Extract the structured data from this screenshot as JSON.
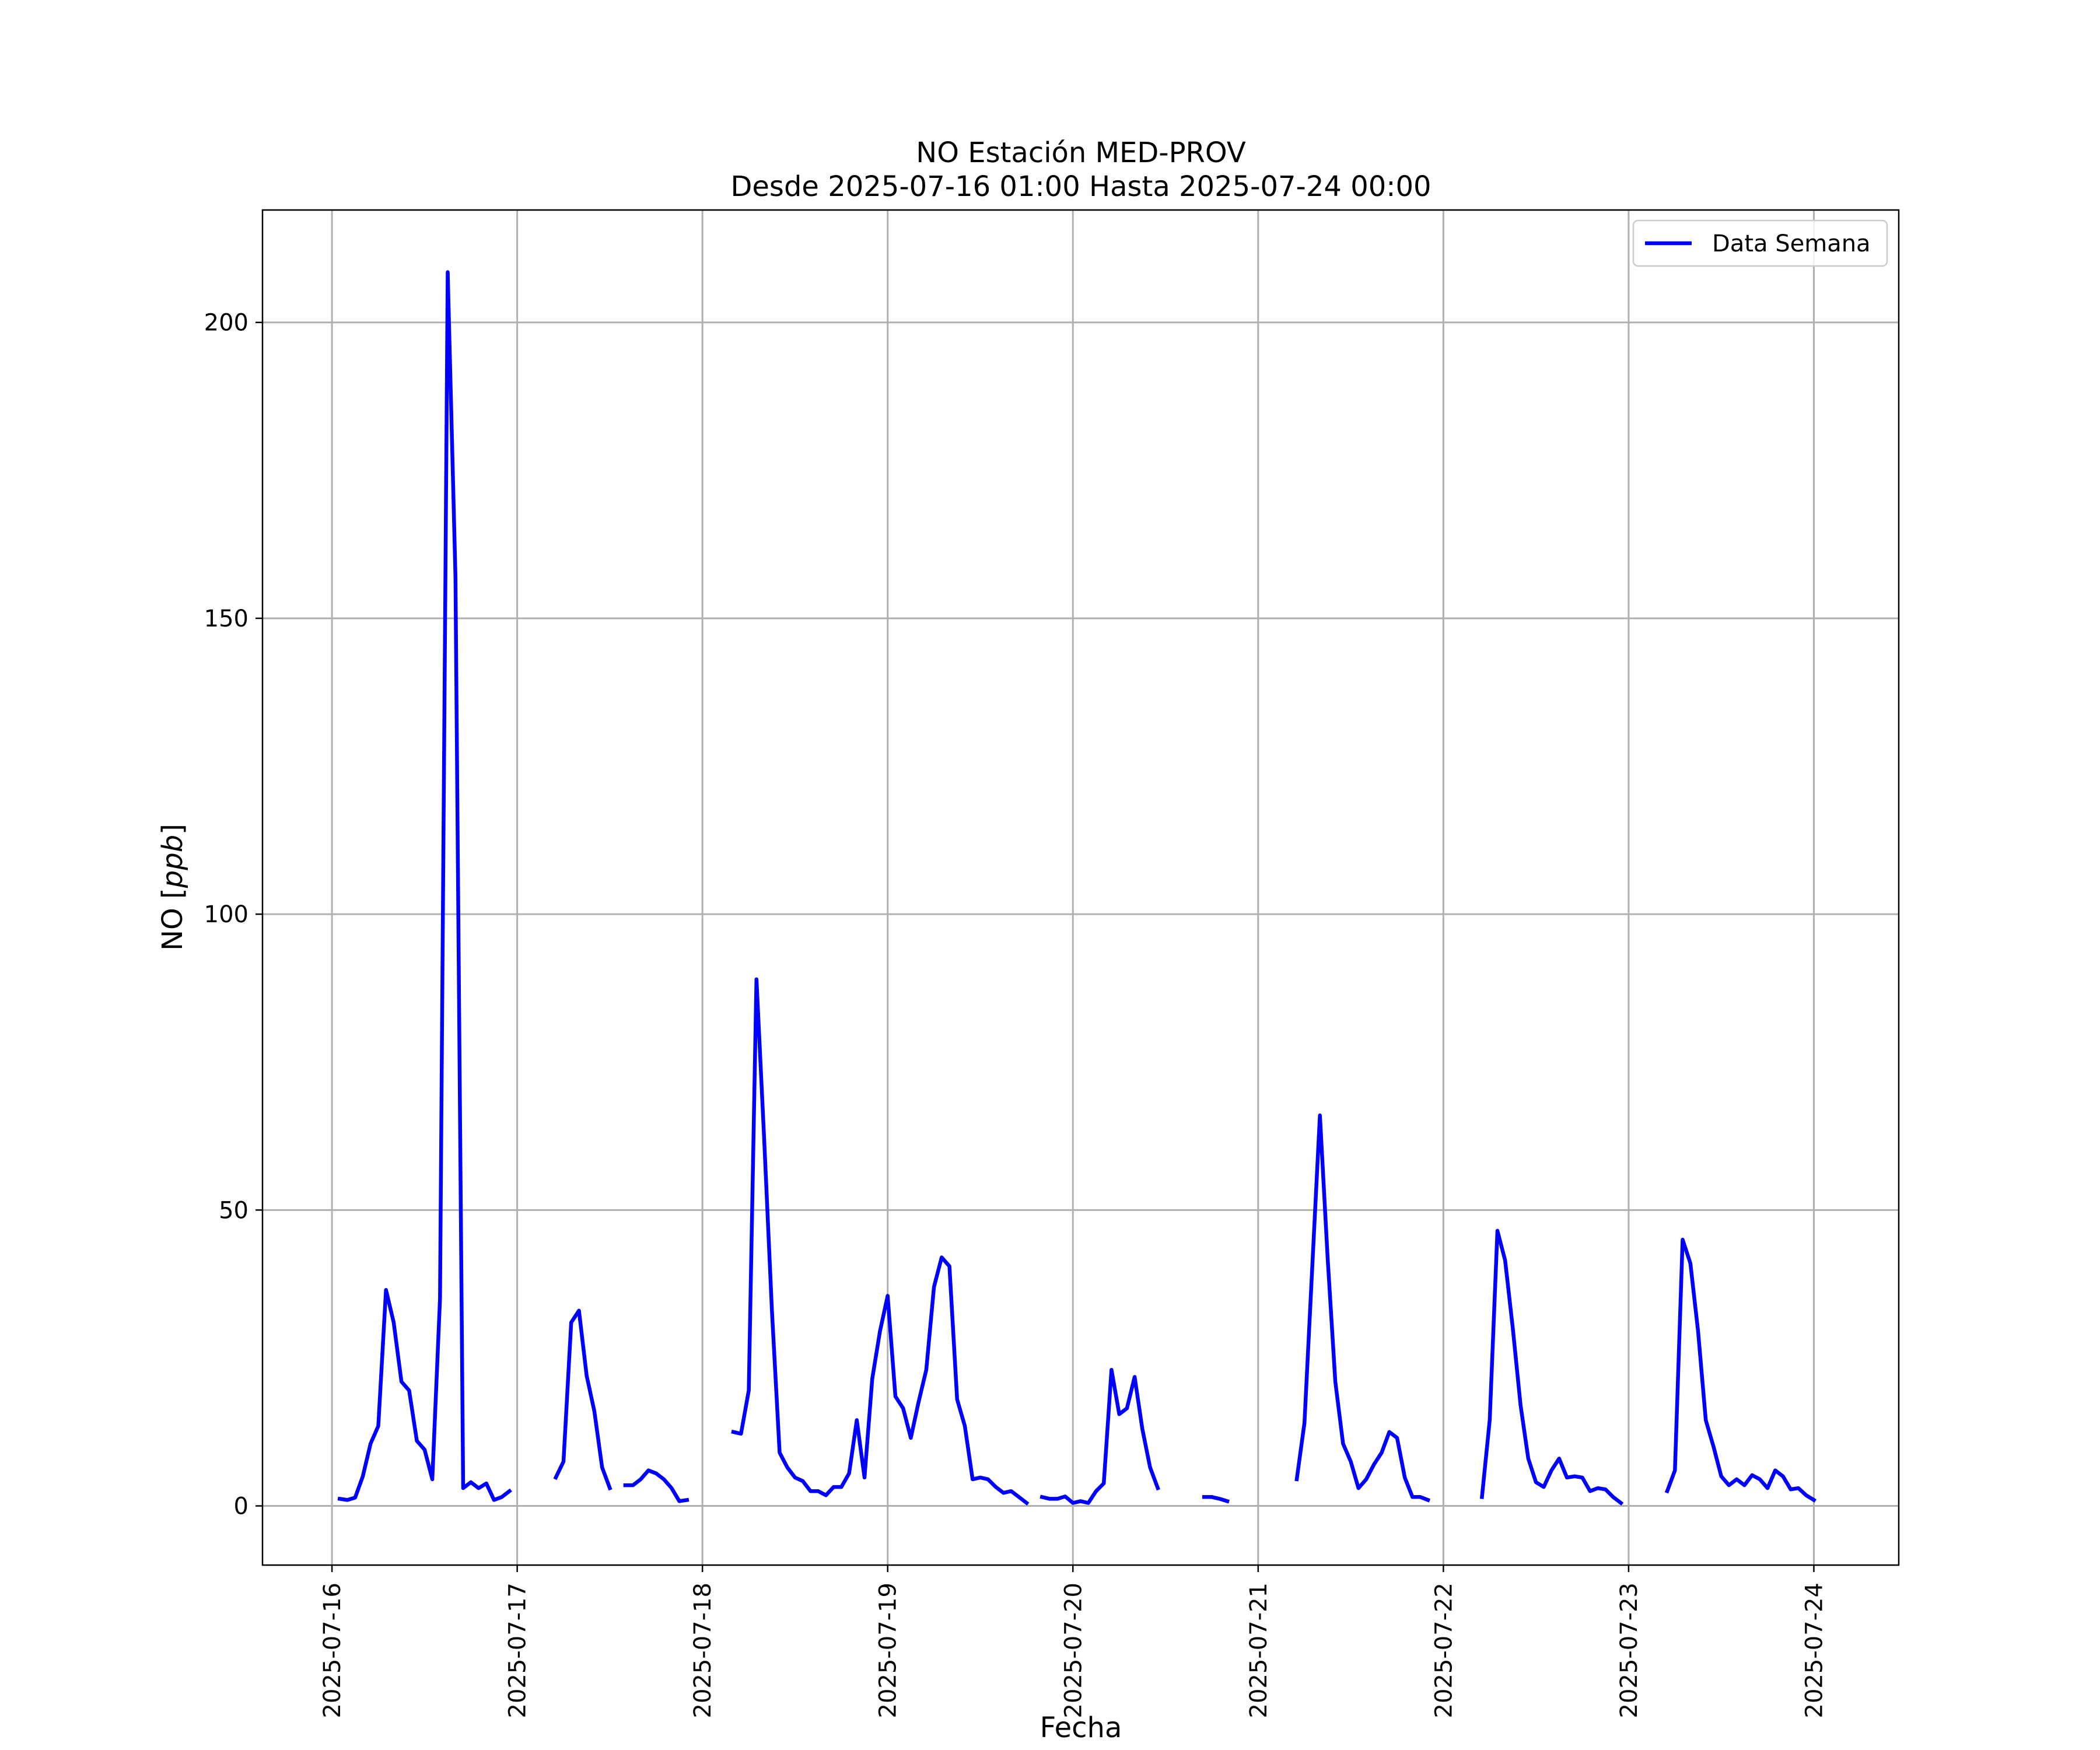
{
  "chart_data": {
    "type": "line",
    "title": "NO Estación MED-PROV",
    "subtitle": "Desde 2025-07-16 01:00 Hasta 2025-07-24 00:00",
    "xlabel": "Fecha",
    "ylabel": "NO [ppb]",
    "ylim": [
      -10,
      219
    ],
    "xlim": [
      "2025-07-15 15:00",
      "2025-07-24 11:00"
    ],
    "yticks": [
      0,
      50,
      100,
      150,
      200
    ],
    "xticks": [
      "2025-07-16",
      "2025-07-17",
      "2025-07-18",
      "2025-07-19",
      "2025-07-20",
      "2025-07-21",
      "2025-07-22",
      "2025-07-23",
      "2025-07-24"
    ],
    "grid": true,
    "legend_position": "top-right",
    "series": [
      {
        "name": "Data Semana",
        "color": "#0000ff",
        "segments": [
          [
            [
              "2025-07-16 01:00",
              1.2
            ],
            [
              "2025-07-16 02:00",
              1.0
            ],
            [
              "2025-07-16 03:00",
              1.4
            ],
            [
              "2025-07-16 04:00",
              5.0
            ],
            [
              "2025-07-16 05:00",
              10.5
            ],
            [
              "2025-07-16 06:00",
              13.5
            ],
            [
              "2025-07-16 07:00",
              36.5
            ],
            [
              "2025-07-16 08:00",
              31.0
            ],
            [
              "2025-07-16 09:00",
              21.0
            ],
            [
              "2025-07-16 10:00",
              19.5
            ],
            [
              "2025-07-16 11:00",
              11.0
            ],
            [
              "2025-07-16 12:00",
              9.5
            ],
            [
              "2025-07-16 13:00",
              4.5
            ],
            [
              "2025-07-16 14:00",
              35.0
            ],
            [
              "2025-07-16 15:00",
              208.5
            ],
            [
              "2025-07-16 16:00",
              157.0
            ],
            [
              "2025-07-16 17:00",
              3.0
            ],
            [
              "2025-07-16 18:00",
              4.0
            ],
            [
              "2025-07-16 19:00",
              3.0
            ],
            [
              "2025-07-16 20:00",
              3.8
            ],
            [
              "2025-07-16 21:00",
              1.0
            ],
            [
              "2025-07-16 22:00",
              1.5
            ],
            [
              "2025-07-16 23:00",
              2.5
            ]
          ],
          [
            [
              "2025-07-17 05:00",
              4.8
            ],
            [
              "2025-07-17 06:00",
              7.5
            ],
            [
              "2025-07-17 07:00",
              31.0
            ],
            [
              "2025-07-17 08:00",
              33.0
            ],
            [
              "2025-07-17 09:00",
              22.0
            ],
            [
              "2025-07-17 10:00",
              16.0
            ],
            [
              "2025-07-17 11:00",
              6.5
            ],
            [
              "2025-07-17 12:00",
              3.0
            ]
          ],
          [
            [
              "2025-07-17 14:00",
              3.5
            ],
            [
              "2025-07-17 15:00",
              3.5
            ],
            [
              "2025-07-17 16:00",
              4.5
            ],
            [
              "2025-07-17 17:00",
              6.0
            ],
            [
              "2025-07-17 18:00",
              5.5
            ],
            [
              "2025-07-17 19:00",
              4.5
            ],
            [
              "2025-07-17 20:00",
              3.0
            ],
            [
              "2025-07-17 21:00",
              0.8
            ],
            [
              "2025-07-17 22:00",
              1.0
            ]
          ],
          [
            [
              "2025-07-18 04:00",
              12.5
            ],
            [
              "2025-07-18 05:00",
              12.2
            ],
            [
              "2025-07-18 06:00",
              19.5
            ],
            [
              "2025-07-18 07:00",
              89.0
            ],
            [
              "2025-07-18 08:00",
              62.0
            ],
            [
              "2025-07-18 09:00",
              33.0
            ],
            [
              "2025-07-18 10:00",
              9.0
            ],
            [
              "2025-07-18 11:00",
              6.5
            ],
            [
              "2025-07-18 12:00",
              4.8
            ],
            [
              "2025-07-18 13:00",
              4.2
            ],
            [
              "2025-07-18 14:00",
              2.5
            ],
            [
              "2025-07-18 15:00",
              2.5
            ],
            [
              "2025-07-18 16:00",
              1.8
            ],
            [
              "2025-07-18 17:00",
              3.2
            ],
            [
              "2025-07-18 18:00",
              3.2
            ],
            [
              "2025-07-18 19:00",
              5.5
            ],
            [
              "2025-07-18 20:00",
              14.5
            ],
            [
              "2025-07-18 21:00",
              4.8
            ],
            [
              "2025-07-18 22:00",
              21.5
            ],
            [
              "2025-07-18 23:00",
              29.5
            ],
            [
              "2025-07-19 00:00",
              35.5
            ],
            [
              "2025-07-19 01:00",
              18.5
            ],
            [
              "2025-07-19 02:00",
              16.5
            ],
            [
              "2025-07-19 03:00",
              11.5
            ],
            [
              "2025-07-19 04:00",
              17.5
            ],
            [
              "2025-07-19 05:00",
              23.0
            ],
            [
              "2025-07-19 06:00",
              37.0
            ],
            [
              "2025-07-19 07:00",
              42.0
            ],
            [
              "2025-07-19 08:00",
              40.5
            ],
            [
              "2025-07-19 09:00",
              18.0
            ],
            [
              "2025-07-19 10:00",
              13.5
            ],
            [
              "2025-07-19 11:00",
              4.5
            ],
            [
              "2025-07-19 12:00",
              4.8
            ],
            [
              "2025-07-19 13:00",
              4.5
            ],
            [
              "2025-07-19 14:00",
              3.2
            ],
            [
              "2025-07-19 15:00",
              2.2
            ],
            [
              "2025-07-19 16:00",
              2.5
            ],
            [
              "2025-07-19 17:00",
              1.5
            ],
            [
              "2025-07-19 18:00",
              0.5
            ]
          ],
          [
            [
              "2025-07-19 20:00",
              1.5
            ],
            [
              "2025-07-19 21:00",
              1.2
            ],
            [
              "2025-07-19 22:00",
              1.2
            ],
            [
              "2025-07-19 23:00",
              1.6
            ],
            [
              "2025-07-20 00:00",
              0.5
            ],
            [
              "2025-07-20 01:00",
              0.8
            ],
            [
              "2025-07-20 02:00",
              0.5
            ],
            [
              "2025-07-20 03:00",
              2.5
            ],
            [
              "2025-07-20 04:00",
              3.8
            ],
            [
              "2025-07-20 05:00",
              23.0
            ],
            [
              "2025-07-20 06:00",
              15.5
            ],
            [
              "2025-07-20 07:00",
              16.5
            ],
            [
              "2025-07-20 08:00",
              21.8
            ],
            [
              "2025-07-20 09:00",
              13.0
            ],
            [
              "2025-07-20 10:00",
              6.5
            ],
            [
              "2025-07-20 11:00",
              3.0
            ]
          ],
          [
            [
              "2025-07-20 17:00",
              1.5
            ],
            [
              "2025-07-20 18:00",
              1.5
            ],
            [
              "2025-07-20 19:00",
              1.2
            ],
            [
              "2025-07-20 20:00",
              0.8
            ]
          ],
          [
            [
              "2025-07-21 05:00",
              4.5
            ],
            [
              "2025-07-21 06:00",
              14.0
            ],
            [
              "2025-07-21 07:00",
              40.0
            ],
            [
              "2025-07-21 08:00",
              66.0
            ],
            [
              "2025-07-21 09:00",
              42.0
            ],
            [
              "2025-07-21 10:00",
              21.0
            ],
            [
              "2025-07-21 11:00",
              10.5
            ],
            [
              "2025-07-21 12:00",
              7.5
            ],
            [
              "2025-07-21 13:00",
              3.0
            ],
            [
              "2025-07-21 14:00",
              4.5
            ],
            [
              "2025-07-21 15:00",
              7.0
            ],
            [
              "2025-07-21 16:00",
              9.0
            ],
            [
              "2025-07-21 17:00",
              12.5
            ],
            [
              "2025-07-21 18:00",
              11.5
            ],
            [
              "2025-07-21 19:00",
              4.8
            ],
            [
              "2025-07-21 20:00",
              1.5
            ],
            [
              "2025-07-21 21:00",
              1.5
            ],
            [
              "2025-07-21 22:00",
              1.0
            ]
          ],
          [
            [
              "2025-07-22 05:00",
              1.5
            ],
            [
              "2025-07-22 06:00",
              14.5
            ],
            [
              "2025-07-22 07:00",
              46.5
            ],
            [
              "2025-07-22 08:00",
              41.5
            ],
            [
              "2025-07-22 09:00",
              30.0
            ],
            [
              "2025-07-22 10:00",
              17.0
            ],
            [
              "2025-07-22 11:00",
              8.0
            ],
            [
              "2025-07-22 12:00",
              4.0
            ],
            [
              "2025-07-22 13:00",
              3.2
            ],
            [
              "2025-07-22 14:00",
              6.0
            ],
            [
              "2025-07-22 15:00",
              8.0
            ],
            [
              "2025-07-22 16:00",
              4.8
            ],
            [
              "2025-07-22 17:00",
              5.0
            ],
            [
              "2025-07-22 18:00",
              4.8
            ],
            [
              "2025-07-22 19:00",
              2.5
            ],
            [
              "2025-07-22 20:00",
              3.0
            ],
            [
              "2025-07-22 21:00",
              2.8
            ],
            [
              "2025-07-22 22:00",
              1.5
            ],
            [
              "2025-07-22 23:00",
              0.5
            ]
          ],
          [
            [
              "2025-07-23 05:00",
              2.5
            ],
            [
              "2025-07-23 06:00",
              6.0
            ],
            [
              "2025-07-23 07:00",
              45.0
            ],
            [
              "2025-07-23 08:00",
              41.0
            ],
            [
              "2025-07-23 09:00",
              29.5
            ],
            [
              "2025-07-23 10:00",
              14.5
            ],
            [
              "2025-07-23 11:00",
              10.0
            ],
            [
              "2025-07-23 12:00",
              5.0
            ],
            [
              "2025-07-23 13:00",
              3.5
            ],
            [
              "2025-07-23 14:00",
              4.5
            ],
            [
              "2025-07-23 15:00",
              3.5
            ],
            [
              "2025-07-23 16:00",
              5.2
            ],
            [
              "2025-07-23 17:00",
              4.5
            ],
            [
              "2025-07-23 18:00",
              3.0
            ],
            [
              "2025-07-23 19:00",
              6.0
            ],
            [
              "2025-07-23 20:00",
              5.0
            ],
            [
              "2025-07-23 21:00",
              2.8
            ],
            [
              "2025-07-23 22:00",
              3.0
            ],
            [
              "2025-07-23 23:00",
              1.8
            ],
            [
              "2025-07-24 00:00",
              1.0
            ]
          ]
        ]
      }
    ]
  }
}
